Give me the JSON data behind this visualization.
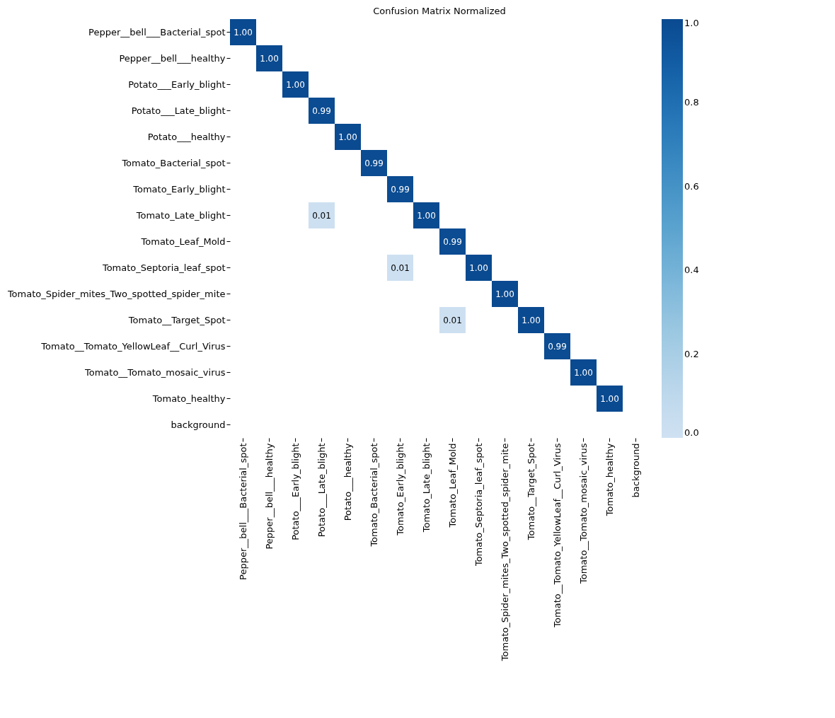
{
  "chart_data": {
    "type": "heatmap",
    "title": "Confusion Matrix Normalized",
    "categories": [
      "Pepper__bell___Bacterial_spot",
      "Pepper__bell___healthy",
      "Potato___Early_blight",
      "Potato___Late_blight",
      "Potato___healthy",
      "Tomato_Bacterial_spot",
      "Tomato_Early_blight",
      "Tomato_Late_blight",
      "Tomato_Leaf_Mold",
      "Tomato_Septoria_leaf_spot",
      "Tomato_Spider_mites_Two_spotted_spider_mite",
      "Tomato__Target_Spot",
      "Tomato__Tomato_YellowLeaf__Curl_Virus",
      "Tomato__Tomato_mosaic_virus",
      "Tomato_healthy",
      "background"
    ],
    "y_categories": [
      "Pepper__bell___Bacterial_spot",
      "Pepper__bell___healthy",
      "Potato___Early_blight",
      "Potato___Late_blight",
      "Potato___healthy",
      "Tomato_Bacterial_spot",
      "Tomato_Early_blight",
      "Tomato_Late_blight",
      "Tomato_Leaf_Mold",
      "Tomato_Septoria_leaf_spot",
      "Tomato_Spider_mites_Two_spotted_spider_mite",
      "Tomato__Target_Spot",
      "Tomato__Tomato_YellowLeaf__Curl_Virus",
      "Tomato__Tomato_mosaic_virus",
      "Tomato_healthy",
      "background"
    ],
    "cells": [
      [
        1.0,
        null,
        null,
        null,
        null,
        null,
        null,
        null,
        null,
        null,
        null,
        null,
        null,
        null,
        null,
        null
      ],
      [
        null,
        1.0,
        null,
        null,
        null,
        null,
        null,
        null,
        null,
        null,
        null,
        null,
        null,
        null,
        null,
        null
      ],
      [
        null,
        null,
        1.0,
        null,
        null,
        null,
        null,
        null,
        null,
        null,
        null,
        null,
        null,
        null,
        null,
        null
      ],
      [
        null,
        null,
        null,
        0.99,
        null,
        null,
        null,
        null,
        null,
        null,
        null,
        null,
        null,
        null,
        null,
        null
      ],
      [
        null,
        null,
        null,
        null,
        1.0,
        null,
        null,
        null,
        null,
        null,
        null,
        null,
        null,
        null,
        null,
        null
      ],
      [
        null,
        null,
        null,
        null,
        null,
        0.99,
        null,
        null,
        null,
        null,
        null,
        null,
        null,
        null,
        null,
        null
      ],
      [
        null,
        null,
        null,
        null,
        null,
        null,
        0.99,
        null,
        null,
        null,
        null,
        null,
        null,
        null,
        null,
        null
      ],
      [
        null,
        null,
        null,
        0.01,
        null,
        null,
        null,
        1.0,
        null,
        null,
        null,
        null,
        null,
        null,
        null,
        null
      ],
      [
        null,
        null,
        null,
        null,
        null,
        null,
        null,
        null,
        0.99,
        null,
        null,
        null,
        null,
        null,
        null,
        null
      ],
      [
        null,
        null,
        null,
        null,
        null,
        null,
        0.01,
        null,
        null,
        1.0,
        null,
        null,
        null,
        null,
        null,
        null
      ],
      [
        null,
        null,
        null,
        null,
        null,
        null,
        null,
        null,
        null,
        null,
        1.0,
        null,
        null,
        null,
        null,
        null
      ],
      [
        null,
        null,
        null,
        null,
        null,
        null,
        null,
        null,
        0.01,
        null,
        null,
        1.0,
        null,
        null,
        null,
        null
      ],
      [
        null,
        null,
        null,
        null,
        null,
        null,
        null,
        null,
        null,
        null,
        null,
        null,
        0.99,
        null,
        null,
        null
      ],
      [
        null,
        null,
        null,
        null,
        null,
        null,
        null,
        null,
        null,
        null,
        null,
        null,
        null,
        1.0,
        null,
        null
      ],
      [
        null,
        null,
        null,
        null,
        null,
        null,
        null,
        null,
        null,
        null,
        null,
        null,
        null,
        null,
        1.0,
        null
      ],
      [
        null,
        null,
        null,
        null,
        null,
        null,
        null,
        null,
        null,
        null,
        null,
        null,
        null,
        null,
        null,
        null
      ]
    ],
    "cell_labels": [
      [
        "1.00",
        null,
        null,
        null,
        null,
        null,
        null,
        null,
        null,
        null,
        null,
        null,
        null,
        null,
        null,
        null
      ],
      [
        null,
        "1.00",
        null,
        null,
        null,
        null,
        null,
        null,
        null,
        null,
        null,
        null,
        null,
        null,
        null,
        null
      ],
      [
        null,
        null,
        "1.00",
        null,
        null,
        null,
        null,
        null,
        null,
        null,
        null,
        null,
        null,
        null,
        null,
        null
      ],
      [
        null,
        null,
        null,
        "0.99",
        null,
        null,
        null,
        null,
        null,
        null,
        null,
        null,
        null,
        null,
        null,
        null
      ],
      [
        null,
        null,
        null,
        null,
        "1.00",
        null,
        null,
        null,
        null,
        null,
        null,
        null,
        null,
        null,
        null,
        null
      ],
      [
        null,
        null,
        null,
        null,
        null,
        "0.99",
        null,
        null,
        null,
        null,
        null,
        null,
        null,
        null,
        null,
        null
      ],
      [
        null,
        null,
        null,
        null,
        null,
        null,
        "0.99",
        null,
        null,
        null,
        null,
        null,
        null,
        null,
        null,
        null
      ],
      [
        null,
        null,
        null,
        "0.01",
        null,
        null,
        null,
        "1.00",
        null,
        null,
        null,
        null,
        null,
        null,
        null,
        null
      ],
      [
        null,
        null,
        null,
        null,
        null,
        null,
        null,
        null,
        "0.99",
        null,
        null,
        null,
        null,
        null,
        null,
        null
      ],
      [
        null,
        null,
        null,
        null,
        null,
        null,
        "0.01",
        null,
        null,
        "1.00",
        null,
        null,
        null,
        null,
        null,
        null
      ],
      [
        null,
        null,
        null,
        null,
        null,
        null,
        null,
        null,
        null,
        null,
        "1.00",
        null,
        null,
        null,
        null,
        null
      ],
      [
        null,
        null,
        null,
        null,
        null,
        null,
        null,
        null,
        "0.01",
        null,
        null,
        "1.00",
        null,
        null,
        null,
        null
      ],
      [
        null,
        null,
        null,
        null,
        null,
        null,
        null,
        null,
        null,
        null,
        null,
        null,
        "0.99",
        null,
        null,
        null
      ],
      [
        null,
        null,
        null,
        null,
        null,
        null,
        null,
        null,
        null,
        null,
        null,
        null,
        null,
        "1.00",
        null,
        null
      ],
      [
        null,
        null,
        null,
        null,
        null,
        null,
        null,
        null,
        null,
        null,
        null,
        null,
        null,
        null,
        "1.00",
        null
      ],
      [
        null,
        null,
        null,
        null,
        null,
        null,
        null,
        null,
        null,
        null,
        null,
        null,
        null,
        null,
        null,
        null
      ]
    ],
    "clim": [
      0,
      1
    ],
    "cticks": [
      {
        "value": 0,
        "label": "0.0"
      },
      0.2,
      0.4,
      0.6,
      0.8,
      {
        "value": 1,
        "label": "1.0"
      }
    ]
  }
}
